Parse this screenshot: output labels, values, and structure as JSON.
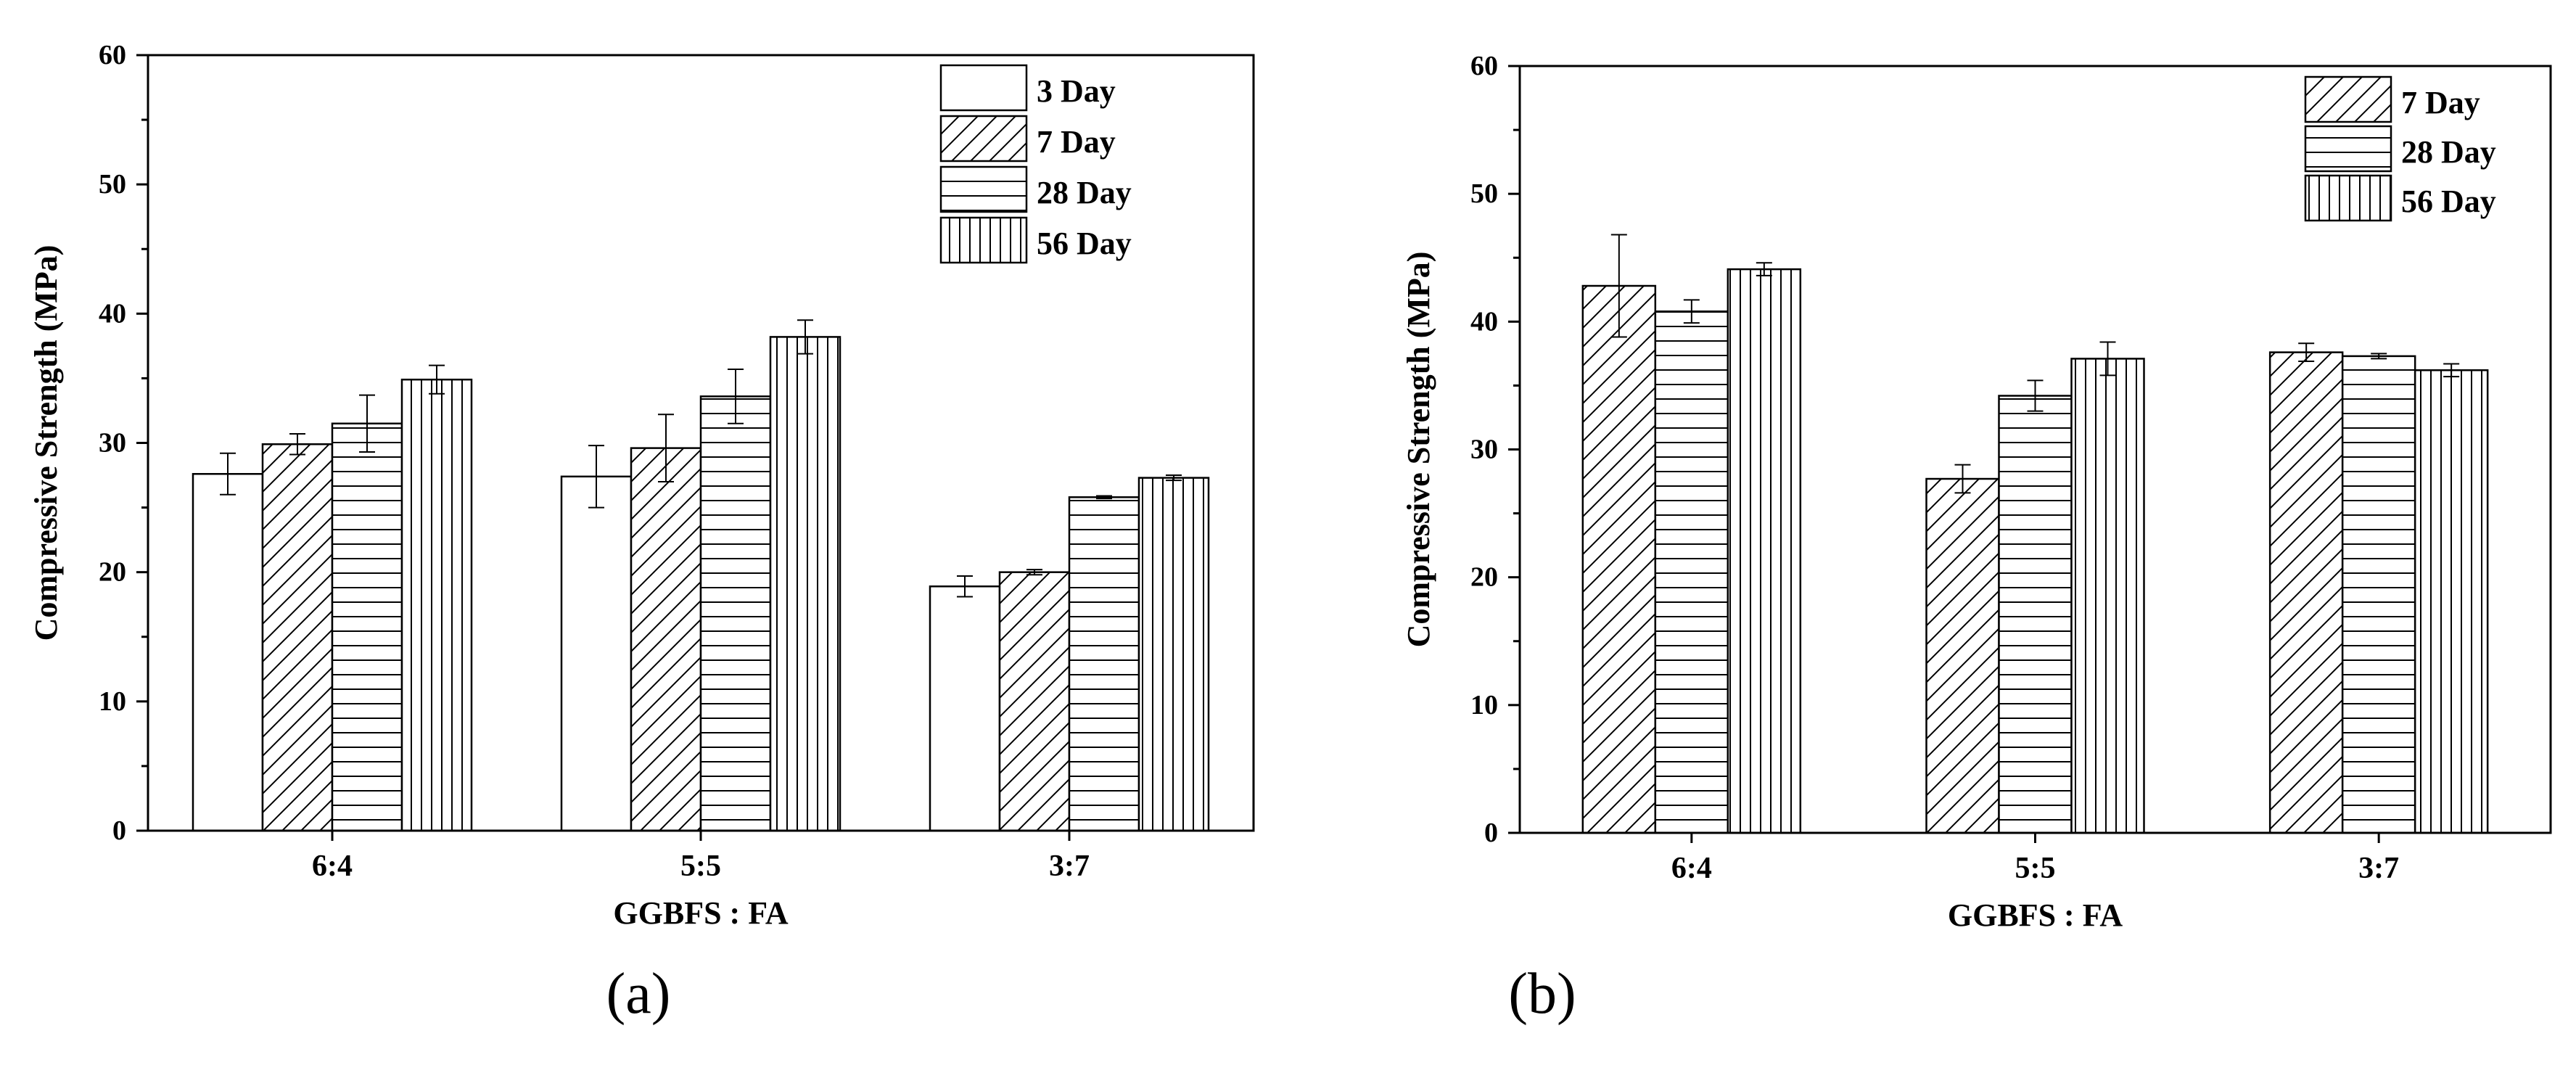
{
  "chart_data": [
    {
      "type": "bar",
      "panel_label": "(a)",
      "xlabel": "GGBFS : FA",
      "ylabel": "Compressive Strength (MPa)",
      "ylim": [
        0,
        60
      ],
      "yticks": [
        0,
        10,
        20,
        30,
        40,
        50,
        60
      ],
      "categories": [
        "6:4",
        "5:5",
        "3:7"
      ],
      "legend_position": "top-right",
      "series": [
        {
          "name": "3 Day",
          "pattern": "none",
          "values": [
            27.6,
            27.4,
            18.9
          ],
          "errors": [
            1.6,
            2.4,
            0.8
          ]
        },
        {
          "name": "7 Day",
          "pattern": "diagonal",
          "values": [
            29.9,
            29.6,
            20.0
          ],
          "errors": [
            0.8,
            2.6,
            0.2
          ]
        },
        {
          "name": "28 Day",
          "pattern": "horizontal",
          "values": [
            31.5,
            33.6,
            25.8
          ],
          "errors": [
            2.2,
            2.1,
            0.1
          ]
        },
        {
          "name": "56 Day",
          "pattern": "vertical",
          "values": [
            34.9,
            38.2,
            27.3
          ],
          "errors": [
            1.1,
            1.3,
            0.2
          ]
        }
      ]
    },
    {
      "type": "bar",
      "panel_label": "(b)",
      "xlabel": "GGBFS : FA",
      "ylabel": "Compressive Strength (MPa)",
      "ylim": [
        0,
        60
      ],
      "yticks": [
        0,
        10,
        20,
        30,
        40,
        50,
        60
      ],
      "categories": [
        "6:4",
        "5:5",
        "3:7"
      ],
      "legend_position": "top-right",
      "series": [
        {
          "name": "7 Day",
          "pattern": "diagonal",
          "values": [
            42.8,
            27.7,
            37.6
          ],
          "errors": [
            4.0,
            1.1,
            0.7
          ]
        },
        {
          "name": "28 Day",
          "pattern": "horizontal",
          "values": [
            40.8,
            34.2,
            37.3
          ],
          "errors": [
            0.9,
            1.2,
            0.2
          ]
        },
        {
          "name": "56 Day",
          "pattern": "vertical",
          "values": [
            44.1,
            37.1,
            36.2
          ],
          "errors": [
            0.5,
            1.3,
            0.5
          ]
        }
      ]
    }
  ],
  "colors": {
    "axis": "#000000",
    "bar_fill": "#ffffff",
    "hatch": "#000000"
  }
}
